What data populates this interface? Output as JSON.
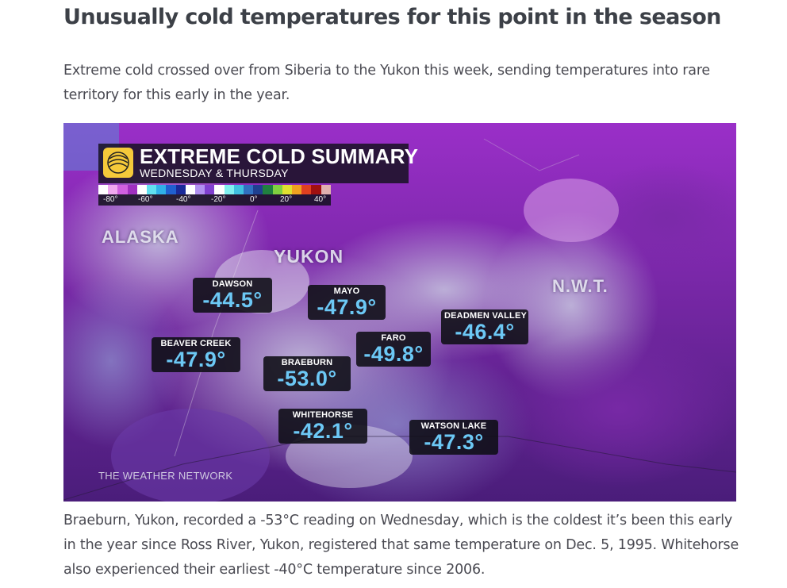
{
  "article": {
    "headline": "Unusually cold temperatures for this point in the season",
    "lede": "Extreme cold crossed over from Siberia to the Yukon this week, sending temperatures into rare territory for this early in the year.",
    "caption": "Braeburn, Yukon, recorded a -53°C reading on Wednesday, which is the coldest it’s been this early in the year since Ross River, Yukon, registered that same temperature on Dec. 5, 1995. Whitehorse also experienced their earliest -40°C temperature since 2006."
  },
  "map": {
    "title": "EXTREME COLD SUMMARY",
    "subtitle": "WEDNESDAY & THURSDAY",
    "logo_icon": "weather-network-logo-icon",
    "credit": "THE WEATHER NETWORK",
    "legend": {
      "ticks": [
        "-80°",
        "-60°",
        "-40°",
        "-20°",
        "0°",
        "20°",
        "40°"
      ],
      "colors": [
        "#ffffff",
        "#f0a8f0",
        "#d060e0",
        "#a030c0",
        "#ffffff",
        "#60e0f0",
        "#30b0e8",
        "#2060d0",
        "#1a2a9a",
        "#ffffff",
        "#b090f0",
        "#8040d0",
        "#ffffff",
        "#80f0f0",
        "#40c0e0",
        "#3070c0",
        "#204090",
        "#208040",
        "#80d040",
        "#e0e030",
        "#f0a020",
        "#e04020",
        "#a01010",
        "#e0b0b0"
      ]
    },
    "regions": {
      "alaska": "ALASKA",
      "yukon": "YUKON",
      "nwt": "N.W.T."
    },
    "stations": [
      {
        "name": "DAWSON",
        "temp": "-44.5°"
      },
      {
        "name": "MAYO",
        "temp": "-47.9°"
      },
      {
        "name": "DEADMEN VALLEY",
        "temp": "-46.4°"
      },
      {
        "name": "FARO",
        "temp": "-49.8°"
      },
      {
        "name": "BEAVER CREEK",
        "temp": "-47.9°"
      },
      {
        "name": "BRAEBURN",
        "temp": "-53.0°"
      },
      {
        "name": "WHITEHORSE",
        "temp": "-42.1°"
      },
      {
        "name": "WATSON LAKE",
        "temp": "-47.3°"
      }
    ]
  }
}
